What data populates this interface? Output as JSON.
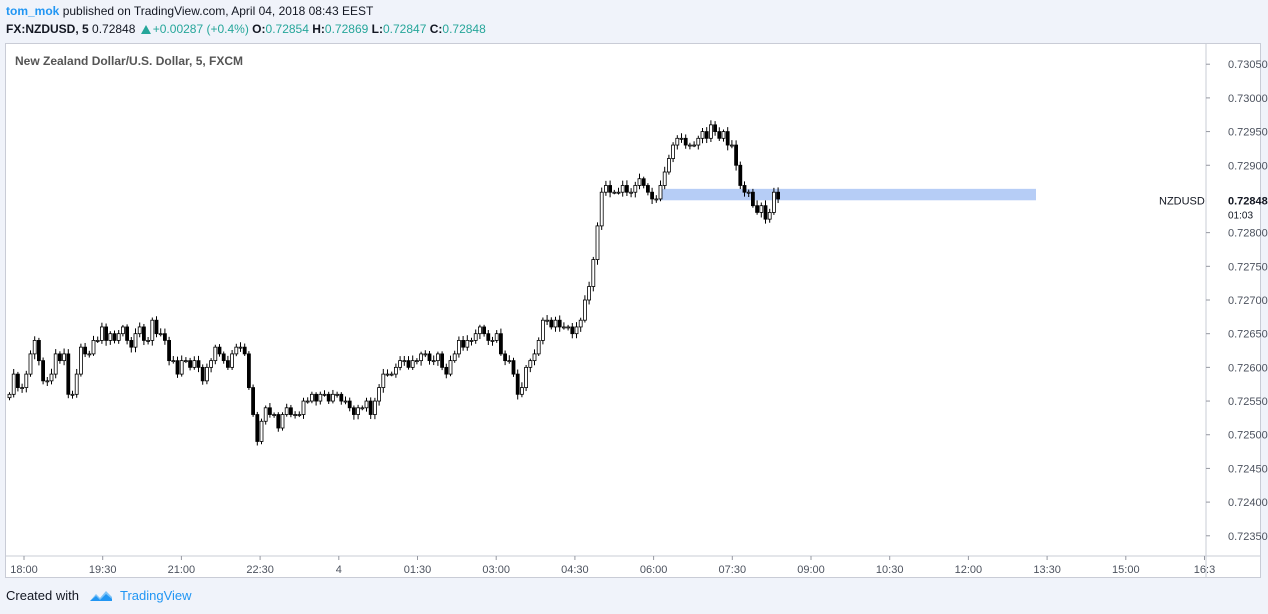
{
  "header": {
    "author": "tom_mok",
    "published_text": "published on TradingView.com, April 04, 2018 08:43 EEST",
    "symbol": "FX:NZDUSD, 5",
    "last": "0.72848",
    "change": "+0.00287 (+0.4%)",
    "o_label": "O:",
    "o_value": "0.72854",
    "h_label": "H:",
    "h_value": "0.72869",
    "l_label": "L:",
    "l_value": "0.72847",
    "c_label": "C:",
    "c_value": "0.72848"
  },
  "footer": {
    "created_with": "Created with",
    "brand": "TradingView"
  },
  "colors": {
    "candle": "#000000",
    "up_fill": "#ffffff",
    "down_fill": "#000000",
    "zone": "#a9c4f5",
    "accent": "#2196f3",
    "positive": "#26a69a"
  },
  "chart_data": {
    "type": "candlestick",
    "title": "New Zealand Dollar/U.S. Dollar, 5, FXCM",
    "y_ticks": [
      "0.73050",
      "0.73000",
      "0.72950",
      "0.72900",
      "0.72848",
      "0.72800",
      "0.72750",
      "0.72700",
      "0.72650",
      "0.72600",
      "0.72550",
      "0.72500",
      "0.72450",
      "0.72400",
      "0.72350"
    ],
    "y_range": [
      0.7232,
      0.7308
    ],
    "x_ticks": [
      "18:00",
      "19:30",
      "21:00",
      "22:30",
      "4",
      "01:30",
      "03:00",
      "04:30",
      "06:00",
      "07:30",
      "09:00",
      "10:30",
      "12:00",
      "13:30",
      "15:00",
      "16:3"
    ],
    "price_label": {
      "name": "NZDUSD",
      "value": "0.72848",
      "countdown": "01:03"
    },
    "zone": {
      "top": 0.72865,
      "bottom": 0.72848
    },
    "candles_close": [
      0.7256,
      0.7259,
      0.7257,
      0.7257,
      0.7259,
      0.7262,
      0.7264,
      0.7261,
      0.7258,
      0.7258,
      0.7259,
      0.7262,
      0.7261,
      0.7262,
      0.7256,
      0.7256,
      0.7259,
      0.7263,
      0.7262,
      0.7262,
      0.7264,
      0.7264,
      0.7266,
      0.7264,
      0.7265,
      0.7264,
      0.7265,
      0.7266,
      0.7264,
      0.7263,
      0.7265,
      0.7266,
      0.7264,
      0.7264,
      0.7267,
      0.7265,
      0.7265,
      0.7264,
      0.7261,
      0.7261,
      0.7259,
      0.7261,
      0.7261,
      0.726,
      0.7261,
      0.726,
      0.7258,
      0.726,
      0.7261,
      0.7263,
      0.7262,
      0.7261,
      0.726,
      0.7262,
      0.7263,
      0.7263,
      0.7262,
      0.7257,
      0.7253,
      0.7249,
      0.7252,
      0.7254,
      0.7253,
      0.7253,
      0.7251,
      0.7253,
      0.7254,
      0.7253,
      0.7253,
      0.7253,
      0.7255,
      0.7255,
      0.7256,
      0.7255,
      0.7256,
      0.7256,
      0.7255,
      0.7256,
      0.7256,
      0.7255,
      0.7255,
      0.7254,
      0.7253,
      0.7254,
      0.7254,
      0.7255,
      0.7253,
      0.7255,
      0.7257,
      0.7259,
      0.7259,
      0.7259,
      0.726,
      0.7261,
      0.7261,
      0.726,
      0.7261,
      0.7261,
      0.7262,
      0.7262,
      0.7261,
      0.7261,
      0.7262,
      0.726,
      0.7259,
      0.7261,
      0.7262,
      0.7264,
      0.7263,
      0.7264,
      0.7264,
      0.7265,
      0.7266,
      0.7265,
      0.7264,
      0.7264,
      0.7265,
      0.7262,
      0.7261,
      0.7261,
      0.7259,
      0.7256,
      0.7257,
      0.726,
      0.7261,
      0.7262,
      0.7264,
      0.7267,
      0.7267,
      0.7266,
      0.7267,
      0.7266,
      0.7266,
      0.7266,
      0.7265,
      0.7266,
      0.7267,
      0.727,
      0.7272,
      0.7276,
      0.7281,
      0.7286,
      0.7287,
      0.7286,
      0.7286,
      0.7286,
      0.7287,
      0.7286,
      0.7286,
      0.7287,
      0.7288,
      0.7287,
      0.7286,
      0.7285,
      0.7285,
      0.7287,
      0.7289,
      0.7291,
      0.7293,
      0.7294,
      0.7294,
      0.7293,
      0.7293,
      0.7293,
      0.7294,
      0.7295,
      0.7294,
      0.7296,
      0.7295,
      0.7294,
      0.7295,
      0.7293,
      0.7293,
      0.729,
      0.7287,
      0.7286,
      0.7286,
      0.7284,
      0.7283,
      0.7284,
      0.7282,
      0.7283,
      0.7286,
      0.7285
    ]
  }
}
